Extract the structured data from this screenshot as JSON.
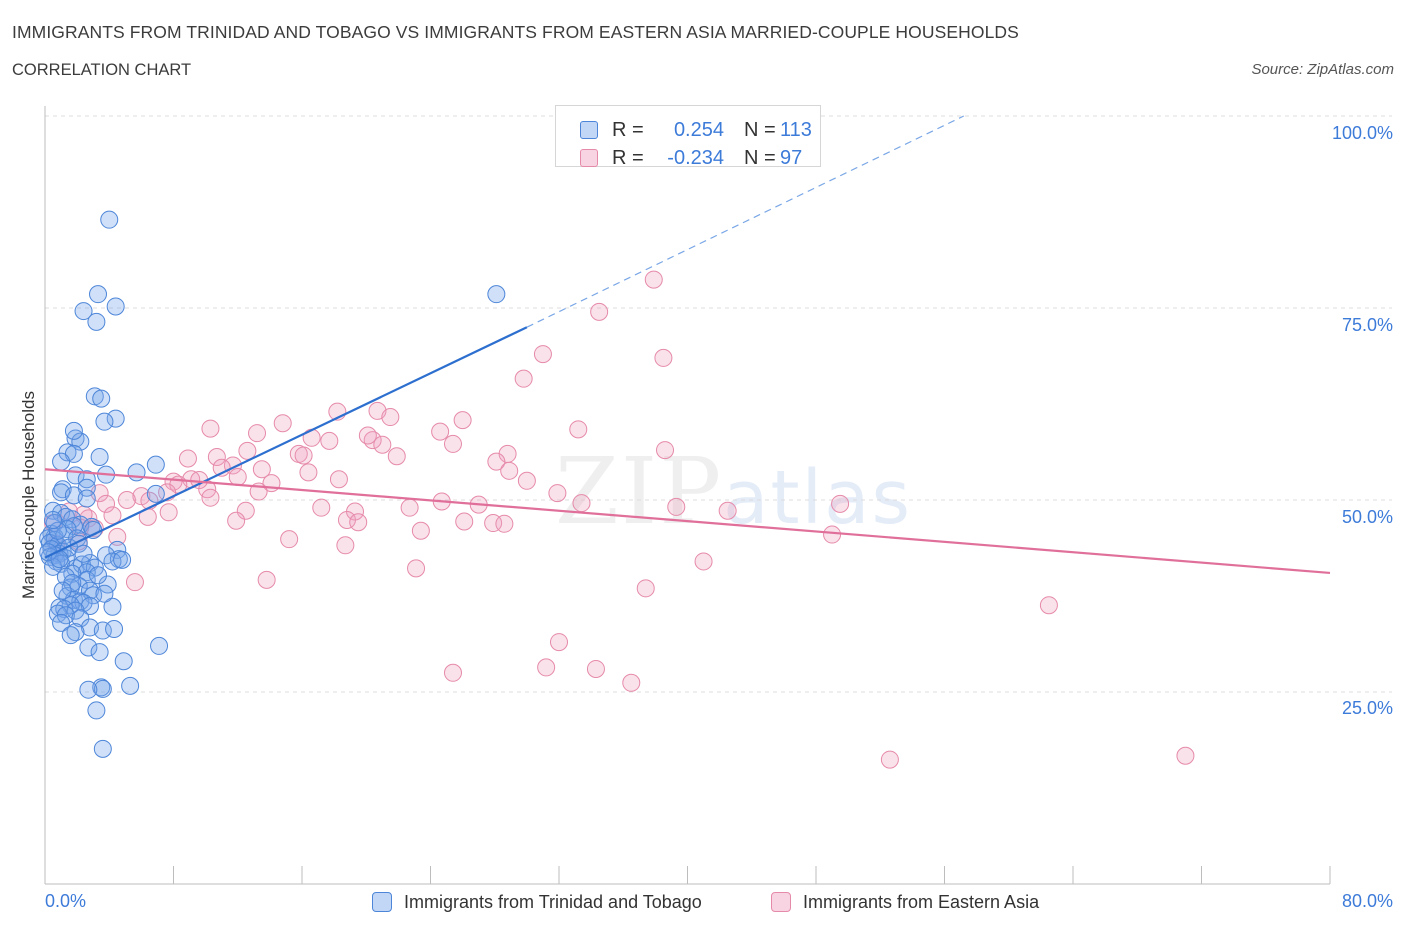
{
  "title": "IMMIGRANTS FROM TRINIDAD AND TOBAGO VS IMMIGRANTS FROM EASTERN ASIA MARRIED-COUPLE HOUSEHOLDS",
  "subtitle": "CORRELATION CHART",
  "source": "Source: ZipAtlas.com",
  "watermark": {
    "zip": "ZIP",
    "atlas": "atlas"
  },
  "stats": {
    "r_label": "R =",
    "n_label": "N =",
    "series1": {
      "r": "0.254",
      "n": "113"
    },
    "series2": {
      "r": "-0.234",
      "n": "97"
    }
  },
  "legend": {
    "series1": "Immigrants from Trinidad and Tobago",
    "series2": "Immigrants from Eastern Asia"
  },
  "colors": {
    "series1_fill": "rgba(120,165,235,0.35)",
    "series1_stroke": "#4d86d9",
    "series1_line": "#2d6fcf",
    "series2_fill": "rgba(240,160,190,0.30)",
    "series2_stroke": "#e68aaa",
    "series2_line": "#e0709a",
    "axis_text": "#3d7bd9",
    "grid": "#dcdcdc"
  },
  "chart_data": {
    "type": "scatter",
    "title": "IMMIGRANTS FROM TRINIDAD AND TOBAGO VS IMMIGRANTS FROM EASTERN ASIA MARRIED-COUPLE HOUSEHOLDS",
    "xlabel": "",
    "ylabel": "Married-couple Households",
    "xlim": [
      0,
      80
    ],
    "ylim": [
      0,
      100
    ],
    "x_tick_labels": [
      {
        "value": 0,
        "label": "0.0%"
      },
      {
        "value": 80,
        "label": "80.0%"
      }
    ],
    "y_tick_labels": [
      {
        "value": 100,
        "label": "100.0%"
      },
      {
        "value": 75,
        "label": "75.0%"
      },
      {
        "value": 50,
        "label": "50.0%"
      },
      {
        "value": 25,
        "label": "25.0%"
      }
    ],
    "series": [
      {
        "name": "Immigrants from Trinidad and Tobago",
        "trend": {
          "x0": 0,
          "y0": 42.5,
          "x1": 30,
          "y1": 72.5,
          "dash_to_x": 57.2,
          "dash_to_y": 100
        },
        "points": [
          [
            4.0,
            86.5
          ],
          [
            3.3,
            76.8
          ],
          [
            4.4,
            75.2
          ],
          [
            2.4,
            74.6
          ],
          [
            3.2,
            73.2
          ],
          [
            28.1,
            76.8
          ],
          [
            3.1,
            63.5
          ],
          [
            3.5,
            63.2
          ],
          [
            4.4,
            60.6
          ],
          [
            3.7,
            60.2
          ],
          [
            1.9,
            58.0
          ],
          [
            2.2,
            57.6
          ],
          [
            1.8,
            59.0
          ],
          [
            1.4,
            56.2
          ],
          [
            1.8,
            56.0
          ],
          [
            3.4,
            55.6
          ],
          [
            1.0,
            55.0
          ],
          [
            6.9,
            54.6
          ],
          [
            3.8,
            53.3
          ],
          [
            1.9,
            53.2
          ],
          [
            5.7,
            53.6
          ],
          [
            2.6,
            52.7
          ],
          [
            2.6,
            51.6
          ],
          [
            1.1,
            51.4
          ],
          [
            1.0,
            51.0
          ],
          [
            6.9,
            50.8
          ],
          [
            1.8,
            50.6
          ],
          [
            2.6,
            50.2
          ],
          [
            0.5,
            48.6
          ],
          [
            1.0,
            48.3
          ],
          [
            1.3,
            47.8
          ],
          [
            1.7,
            47.5
          ],
          [
            0.6,
            47.0
          ],
          [
            2.2,
            46.8
          ],
          [
            1.8,
            46.6
          ],
          [
            2.9,
            46.5
          ],
          [
            1.4,
            46.2
          ],
          [
            0.4,
            45.6
          ],
          [
            0.6,
            45.2
          ],
          [
            0.2,
            45.0
          ],
          [
            0.6,
            44.8
          ],
          [
            0.3,
            44.4
          ],
          [
            0.8,
            44.1
          ],
          [
            0.4,
            43.6
          ],
          [
            1.1,
            43.3
          ],
          [
            0.9,
            43.0
          ],
          [
            0.6,
            42.8
          ],
          [
            0.3,
            42.6
          ],
          [
            1.3,
            42.4
          ],
          [
            0.7,
            42.0
          ],
          [
            1.0,
            41.7
          ],
          [
            0.5,
            41.3
          ],
          [
            1.9,
            41.1
          ],
          [
            4.5,
            43.5
          ],
          [
            3.8,
            42.8
          ],
          [
            4.6,
            42.3
          ],
          [
            4.2,
            42.0
          ],
          [
            2.8,
            41.8
          ],
          [
            2.3,
            41.6
          ],
          [
            3.1,
            41.2
          ],
          [
            2.6,
            40.6
          ],
          [
            1.7,
            40.4
          ],
          [
            1.3,
            40.0
          ],
          [
            2.6,
            39.6
          ],
          [
            3.9,
            39.0
          ],
          [
            2.1,
            38.8
          ],
          [
            1.6,
            38.6
          ],
          [
            2.8,
            38.2
          ],
          [
            3.0,
            37.6
          ],
          [
            1.4,
            37.5
          ],
          [
            1.8,
            37.0
          ],
          [
            2.2,
            36.8
          ],
          [
            2.4,
            36.6
          ],
          [
            1.6,
            36.3
          ],
          [
            2.8,
            36.2
          ],
          [
            4.2,
            36.1
          ],
          [
            0.9,
            36.0
          ],
          [
            1.2,
            35.8
          ],
          [
            1.9,
            35.6
          ],
          [
            0.8,
            35.2
          ],
          [
            1.3,
            35.0
          ],
          [
            2.2,
            34.6
          ],
          [
            1.0,
            34.0
          ],
          [
            2.8,
            33.4
          ],
          [
            3.6,
            33.0
          ],
          [
            4.3,
            33.2
          ],
          [
            1.9,
            32.8
          ],
          [
            1.6,
            32.4
          ],
          [
            7.1,
            31.0
          ],
          [
            2.7,
            30.8
          ],
          [
            3.4,
            30.2
          ],
          [
            4.9,
            29.0
          ],
          [
            5.3,
            25.8
          ],
          [
            3.5,
            25.6
          ],
          [
            3.6,
            25.4
          ],
          [
            2.7,
            25.3
          ],
          [
            3.2,
            22.6
          ],
          [
            3.6,
            17.6
          ],
          [
            1.2,
            45.4
          ],
          [
            0.8,
            46.0
          ],
          [
            0.5,
            47.4
          ],
          [
            2.0,
            45.0
          ],
          [
            4.8,
            42.2
          ],
          [
            3.3,
            40.2
          ],
          [
            0.2,
            43.2
          ],
          [
            1.5,
            43.8
          ],
          [
            2.1,
            44.3
          ],
          [
            0.9,
            42.3
          ],
          [
            3.0,
            46.1
          ],
          [
            2.4,
            43.0
          ],
          [
            1.7,
            39.2
          ],
          [
            3.7,
            37.8
          ],
          [
            1.1,
            38.2
          ]
        ]
      },
      {
        "name": "Immigrants from Eastern Asia",
        "trend": {
          "x0": 0,
          "y0": 54.0,
          "x1": 80,
          "y1": 40.5
        },
        "points": [
          [
            37.9,
            78.7
          ],
          [
            34.5,
            74.5
          ],
          [
            38.5,
            68.5
          ],
          [
            31.0,
            69.0
          ],
          [
            29.8,
            65.8
          ],
          [
            18.2,
            61.5
          ],
          [
            20.7,
            61.6
          ],
          [
            21.5,
            60.8
          ],
          [
            14.8,
            60.0
          ],
          [
            26.0,
            60.4
          ],
          [
            10.3,
            59.3
          ],
          [
            13.2,
            58.7
          ],
          [
            16.6,
            58.1
          ],
          [
            17.7,
            57.7
          ],
          [
            20.4,
            57.8
          ],
          [
            33.2,
            59.2
          ],
          [
            25.4,
            57.3
          ],
          [
            21.0,
            57.2
          ],
          [
            12.6,
            56.4
          ],
          [
            15.8,
            56.0
          ],
          [
            16.1,
            55.8
          ],
          [
            28.8,
            56.0
          ],
          [
            38.6,
            56.5
          ],
          [
            21.9,
            55.7
          ],
          [
            8.9,
            55.4
          ],
          [
            10.7,
            55.6
          ],
          [
            28.1,
            55.0
          ],
          [
            11.7,
            54.5
          ],
          [
            11.0,
            54.2
          ],
          [
            13.5,
            54.0
          ],
          [
            16.4,
            53.6
          ],
          [
            28.9,
            53.8
          ],
          [
            12.0,
            53.0
          ],
          [
            14.1,
            52.2
          ],
          [
            30.0,
            52.5
          ],
          [
            9.1,
            52.7
          ],
          [
            8.0,
            52.4
          ],
          [
            8.3,
            52.0
          ],
          [
            10.1,
            51.4
          ],
          [
            7.6,
            51.0
          ],
          [
            3.4,
            50.9
          ],
          [
            6.0,
            50.5
          ],
          [
            10.3,
            50.3
          ],
          [
            5.1,
            50.0
          ],
          [
            6.5,
            49.9
          ],
          [
            3.8,
            49.5
          ],
          [
            17.2,
            49.0
          ],
          [
            12.5,
            48.6
          ],
          [
            19.3,
            48.5
          ],
          [
            22.7,
            49.0
          ],
          [
            24.7,
            49.8
          ],
          [
            27.0,
            49.4
          ],
          [
            33.4,
            49.6
          ],
          [
            39.3,
            49.1
          ],
          [
            42.5,
            48.6
          ],
          [
            49.5,
            49.5
          ],
          [
            7.7,
            48.4
          ],
          [
            4.2,
            48.0
          ],
          [
            2.7,
            47.6
          ],
          [
            3.1,
            46.3
          ],
          [
            11.9,
            47.3
          ],
          [
            18.8,
            47.4
          ],
          [
            19.5,
            47.1
          ],
          [
            26.1,
            47.2
          ],
          [
            27.9,
            47.0
          ],
          [
            28.6,
            46.9
          ],
          [
            23.4,
            46.0
          ],
          [
            15.2,
            44.9
          ],
          [
            18.7,
            44.1
          ],
          [
            2.1,
            44.6
          ],
          [
            0.7,
            44.3
          ],
          [
            0.5,
            47.0
          ],
          [
            49.0,
            45.5
          ],
          [
            4.5,
            45.2
          ],
          [
            41.0,
            42.0
          ],
          [
            23.1,
            41.1
          ],
          [
            13.8,
            39.6
          ],
          [
            5.6,
            39.3
          ],
          [
            37.4,
            38.5
          ],
          [
            62.5,
            36.3
          ],
          [
            32.0,
            31.5
          ],
          [
            31.2,
            28.2
          ],
          [
            34.3,
            28.0
          ],
          [
            25.4,
            27.5
          ],
          [
            36.5,
            26.2
          ],
          [
            52.6,
            16.2
          ],
          [
            71.0,
            16.7
          ],
          [
            1.5,
            48.5
          ],
          [
            2.2,
            46.4
          ],
          [
            6.4,
            47.8
          ],
          [
            9.6,
            52.6
          ],
          [
            13.3,
            51.1
          ],
          [
            20.1,
            58.4
          ],
          [
            24.6,
            58.9
          ],
          [
            18.3,
            52.7
          ],
          [
            31.9,
            50.9
          ],
          [
            2.4,
            48.1
          ]
        ]
      }
    ]
  }
}
